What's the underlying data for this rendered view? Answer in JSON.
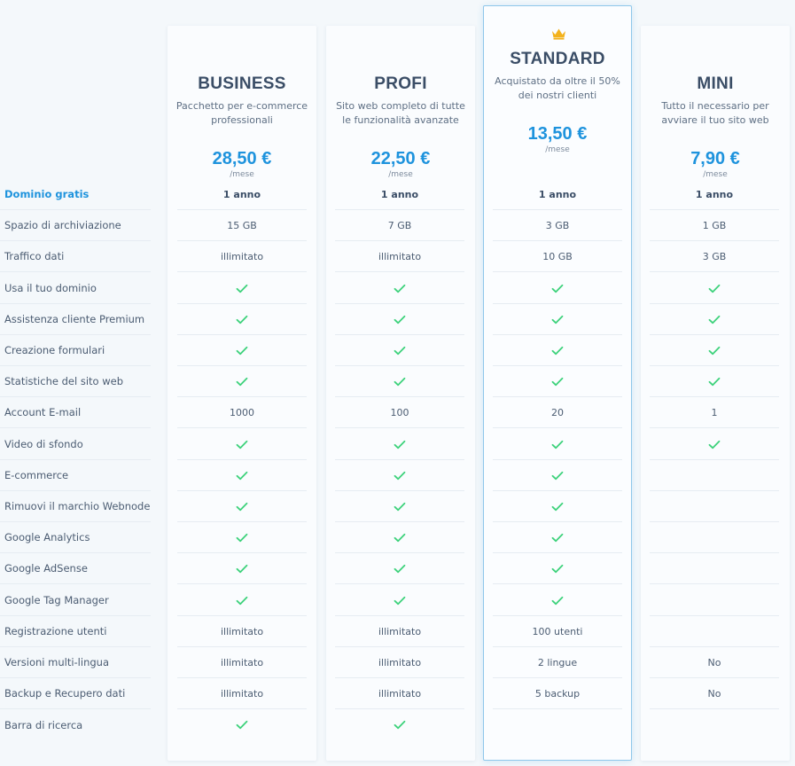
{
  "colors": {
    "accent": "#1e93dd",
    "check": "#3ed27c",
    "crown": "#f3b21c",
    "featured_border": "#8fc7ea"
  },
  "plans": [
    {
      "name": "BUSINESS",
      "desc": "Pacchetto per e-commerce professionali",
      "price": "28,50 €",
      "period": "/mese"
    },
    {
      "name": "PROFI",
      "desc": "Sito web completo di tutte le funzionalità avanzate",
      "price": "22,50 €",
      "period": "/mese"
    },
    {
      "name": "STANDARD",
      "desc": "Acquistato da oltre il 50% dei nostri clienti",
      "price": "13,50 €",
      "period": "/mese",
      "featured": true,
      "badge_icon": "crown-icon"
    },
    {
      "name": "MINI",
      "desc": "Tutto il necessario per avviare il tuo sito web",
      "price": "7,90 €",
      "period": "/mese"
    }
  ],
  "features": [
    {
      "label": "Dominio gratis",
      "highlight": true,
      "bold": true,
      "values": [
        "1 anno",
        "1 anno",
        "1 anno",
        "1 anno"
      ]
    },
    {
      "label": "Spazio di archiviazione",
      "values": [
        "15 GB",
        "7 GB",
        "3 GB",
        "1 GB"
      ]
    },
    {
      "label": "Traffico dati",
      "values": [
        "illimitato",
        "illimitato",
        "10 GB",
        "3 GB"
      ]
    },
    {
      "label": "Usa il tuo dominio",
      "values": [
        "check",
        "check",
        "check",
        "check"
      ]
    },
    {
      "label": "Assistenza cliente Premium",
      "values": [
        "check",
        "check",
        "check",
        "check"
      ]
    },
    {
      "label": "Creazione formulari",
      "values": [
        "check",
        "check",
        "check",
        "check"
      ]
    },
    {
      "label": "Statistiche del sito web",
      "values": [
        "check",
        "check",
        "check",
        "check"
      ]
    },
    {
      "label": "Account E-mail",
      "values": [
        "1000",
        "100",
        "20",
        "1"
      ]
    },
    {
      "label": "Video di sfondo",
      "values": [
        "check",
        "check",
        "check",
        "check"
      ]
    },
    {
      "label": "E-commerce",
      "values": [
        "check",
        "check",
        "check",
        ""
      ]
    },
    {
      "label": "Rimuovi il marchio Webnode",
      "values": [
        "check",
        "check",
        "check",
        ""
      ]
    },
    {
      "label": "Google Analytics",
      "values": [
        "check",
        "check",
        "check",
        ""
      ]
    },
    {
      "label": "Google AdSense",
      "values": [
        "check",
        "check",
        "check",
        ""
      ]
    },
    {
      "label": "Google Tag Manager",
      "values": [
        "check",
        "check",
        "check",
        ""
      ]
    },
    {
      "label": "Registrazione utenti",
      "values": [
        "illimitato",
        "illimitato",
        "100 utenti",
        ""
      ]
    },
    {
      "label": "Versioni multi-lingua",
      "values": [
        "illimitato",
        "illimitato",
        "2 lingue",
        "No"
      ]
    },
    {
      "label": "Backup e Recupero dati",
      "values": [
        "illimitato",
        "illimitato",
        "5 backup",
        "No"
      ]
    },
    {
      "label": "Barra di ricerca",
      "values": [
        "check",
        "check",
        "",
        ""
      ]
    }
  ]
}
